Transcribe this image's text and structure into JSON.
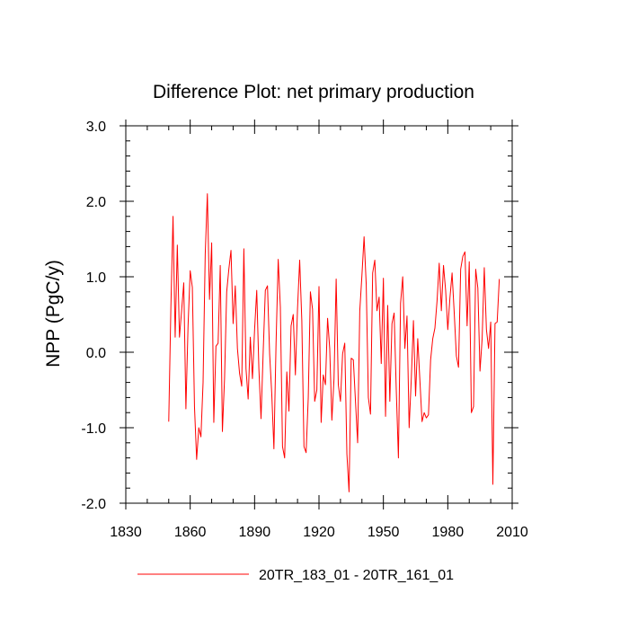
{
  "chart_data": {
    "type": "line",
    "title": "Difference Plot: net primary production",
    "xlabel": "",
    "ylabel": "NPP  (PgC/y)",
    "xlim": [
      1830,
      2010
    ],
    "ylim": [
      -2.0,
      3.0
    ],
    "x_ticks": [
      1830,
      1860,
      1890,
      1920,
      1950,
      1980,
      2010
    ],
    "x_tick_labels": [
      "1830",
      "1860",
      "1890",
      "1920",
      "1950",
      "1980",
      "2010"
    ],
    "y_ticks": [
      -2.0,
      -1.0,
      0.0,
      1.0,
      2.0,
      3.0
    ],
    "y_tick_labels": [
      "-2.0",
      "-1.0",
      "0.0",
      "1.0",
      "2.0",
      "3.0"
    ],
    "grid": false,
    "legend_position": "bottom",
    "series": [
      {
        "name": "20TR_183_01 - 20TR_161_01",
        "color": "#ff0000",
        "x_start": 1850,
        "x_step": 1,
        "values": [
          -0.92,
          0.6,
          1.8,
          0.2,
          1.42,
          0.2,
          0.55,
          0.92,
          -0.75,
          0.35,
          1.08,
          0.86,
          -0.72,
          -1.42,
          -1.0,
          -1.12,
          -0.4,
          1.3,
          2.1,
          0.7,
          1.45,
          -0.93,
          0.08,
          0.12,
          1.15,
          -1.05,
          -0.35,
          0.8,
          1.1,
          1.35,
          0.38,
          0.88,
          0.05,
          -0.28,
          -0.45,
          1.37,
          -0.22,
          -0.62,
          0.2,
          -0.35,
          0.3,
          0.82,
          -0.22,
          -0.88,
          0.0,
          0.82,
          0.88,
          -0.02,
          -0.55,
          -1.28,
          0.12,
          1.23,
          0.6,
          -1.25,
          -1.4,
          -0.26,
          -0.78,
          0.35,
          0.5,
          -0.3,
          0.58,
          1.22,
          0.42,
          -1.25,
          -1.33,
          -0.6,
          0.8,
          0.57,
          -0.65,
          -0.5,
          0.87,
          -0.93,
          -0.3,
          -0.43,
          0.45,
          0.05,
          -0.9,
          -0.35,
          0.97,
          -0.43,
          -0.65,
          -0.02,
          0.12,
          -1.35,
          -1.85,
          -0.08,
          -0.1,
          -0.65,
          -1.2,
          0.55,
          1.02,
          1.53,
          0.9,
          -0.6,
          -0.82,
          1.05,
          1.22,
          0.55,
          0.73,
          -0.15,
          0.98,
          -0.85,
          0.62,
          -0.65,
          0.38,
          0.52,
          -0.5,
          -1.4,
          0.65,
          1.0,
          0.05,
          0.48,
          -1.0,
          -0.35,
          0.42,
          -0.58,
          0.18,
          -0.37,
          -0.92,
          -0.8,
          -0.87,
          -0.83,
          -0.1,
          0.18,
          0.32,
          0.68,
          1.18,
          0.55,
          1.15,
          0.82,
          0.3,
          0.72,
          1.05,
          0.52,
          -0.05,
          -0.2,
          1.1,
          1.27,
          1.33,
          0.35,
          1.2,
          -0.8,
          -0.72,
          1.1,
          0.85,
          -0.25,
          0.18,
          1.12,
          0.3,
          0.05,
          0.4,
          -1.75,
          0.38,
          0.4,
          0.97
        ]
      }
    ]
  }
}
